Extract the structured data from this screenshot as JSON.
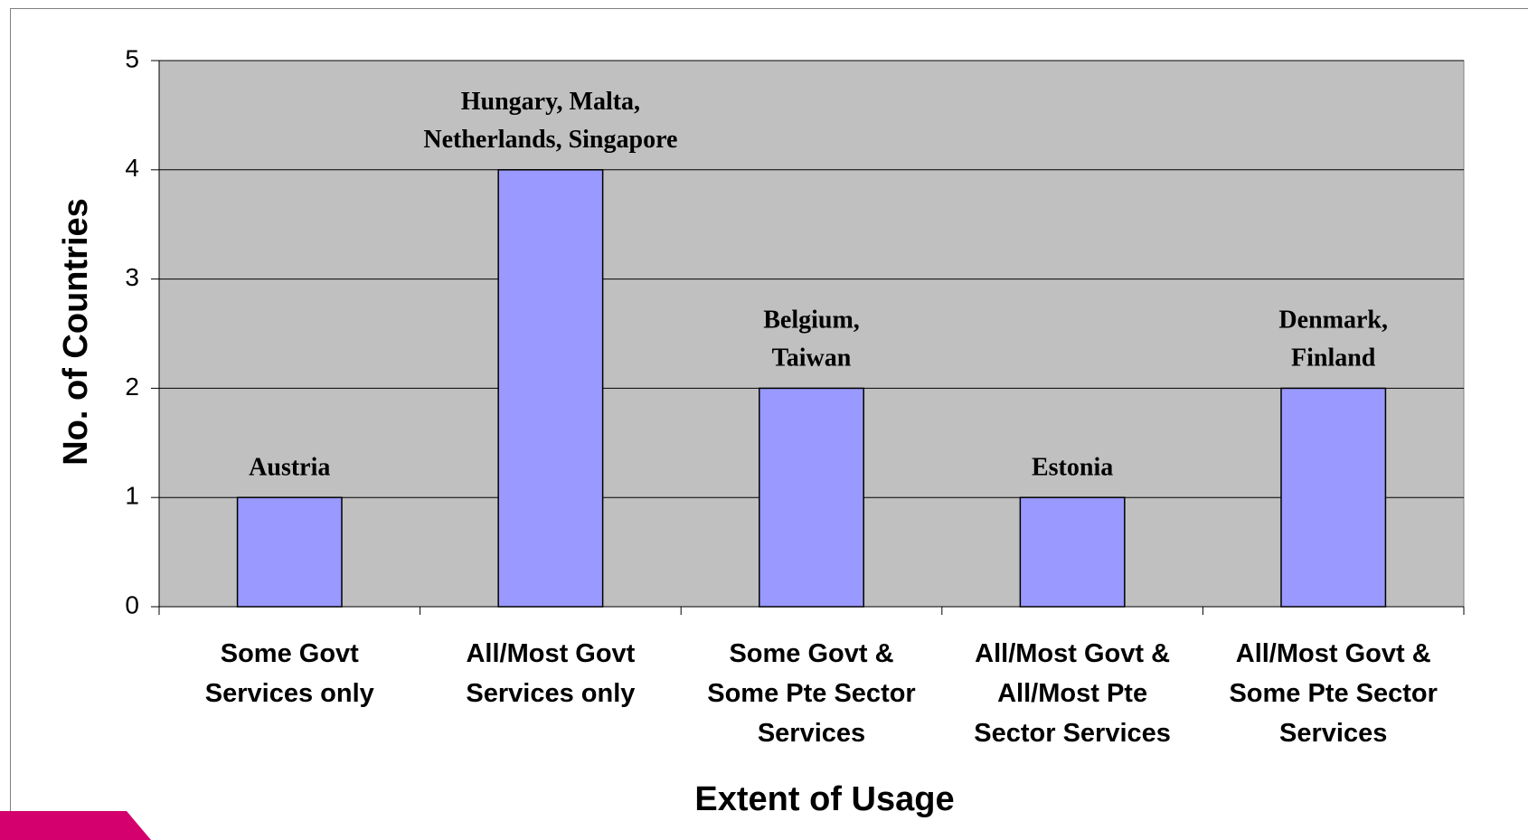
{
  "chart_data": {
    "type": "bar",
    "categories": [
      "Some Govt\nServices only",
      "All/Most Govt\nServices only",
      "Some Govt &\nSome Pte Sector\nServices",
      "All/Most Govt &\nAll/Most Pte\nSector Services",
      "All/Most Govt &\nSome Pte Sector\nServices"
    ],
    "values": [
      1,
      4,
      2,
      1,
      2
    ],
    "annotations": [
      "Austria",
      "Hungary, Malta,\nNetherlands, Singapore",
      "Belgium,\nTaiwan",
      "Estonia",
      "Denmark,\nFinland"
    ],
    "color": "#9999ff",
    "xlabel": "Extent of Usage",
    "ylabel": "No. of Countries",
    "ylim": [
      0,
      5
    ],
    "yticks": [
      0,
      1,
      2,
      3,
      4,
      5
    ],
    "grid": true
  }
}
